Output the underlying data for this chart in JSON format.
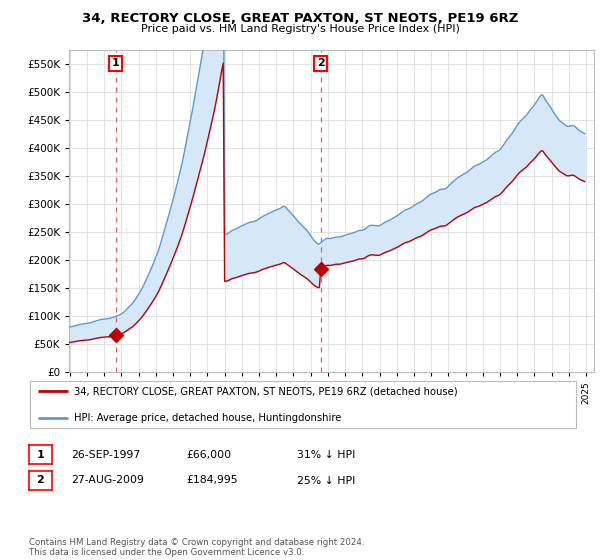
{
  "title": "34, RECTORY CLOSE, GREAT PAXTON, ST NEOTS, PE19 6RZ",
  "subtitle": "Price paid vs. HM Land Registry's House Price Index (HPI)",
  "ytick_values": [
    0,
    50000,
    100000,
    150000,
    200000,
    250000,
    300000,
    350000,
    400000,
    450000,
    500000,
    550000
  ],
  "ylim": [
    0,
    575000
  ],
  "xlim_start": 1995.0,
  "xlim_end": 2025.5,
  "purchase1_year": 1997,
  "purchase1_month": 9,
  "purchase1_price": 66000,
  "purchase1_label": "1",
  "purchase2_year": 2009,
  "purchase2_month": 8,
  "purchase2_price": 184995,
  "purchase2_label": "2",
  "legend_entry1": "34, RECTORY CLOSE, GREAT PAXTON, ST NEOTS, PE19 6RZ (detached house)",
  "legend_entry2": "HPI: Average price, detached house, Huntingdonshire",
  "table_row1": [
    "1",
    "26-SEP-1997",
    "£66,000",
    "31% ↓ HPI"
  ],
  "table_row2": [
    "2",
    "27-AUG-2009",
    "£184,995",
    "25% ↓ HPI"
  ],
  "footer": "Contains HM Land Registry data © Crown copyright and database right 2024.\nThis data is licensed under the Open Government Licence v3.0.",
  "hpi_color": "#5b9bd5",
  "fill_color": "#d6e8f7",
  "price_color": "#c00000",
  "dashed_line_color": "#e06060",
  "marker_color": "#c00000",
  "bg_color": "#ffffff",
  "grid_color": "#dddddd"
}
